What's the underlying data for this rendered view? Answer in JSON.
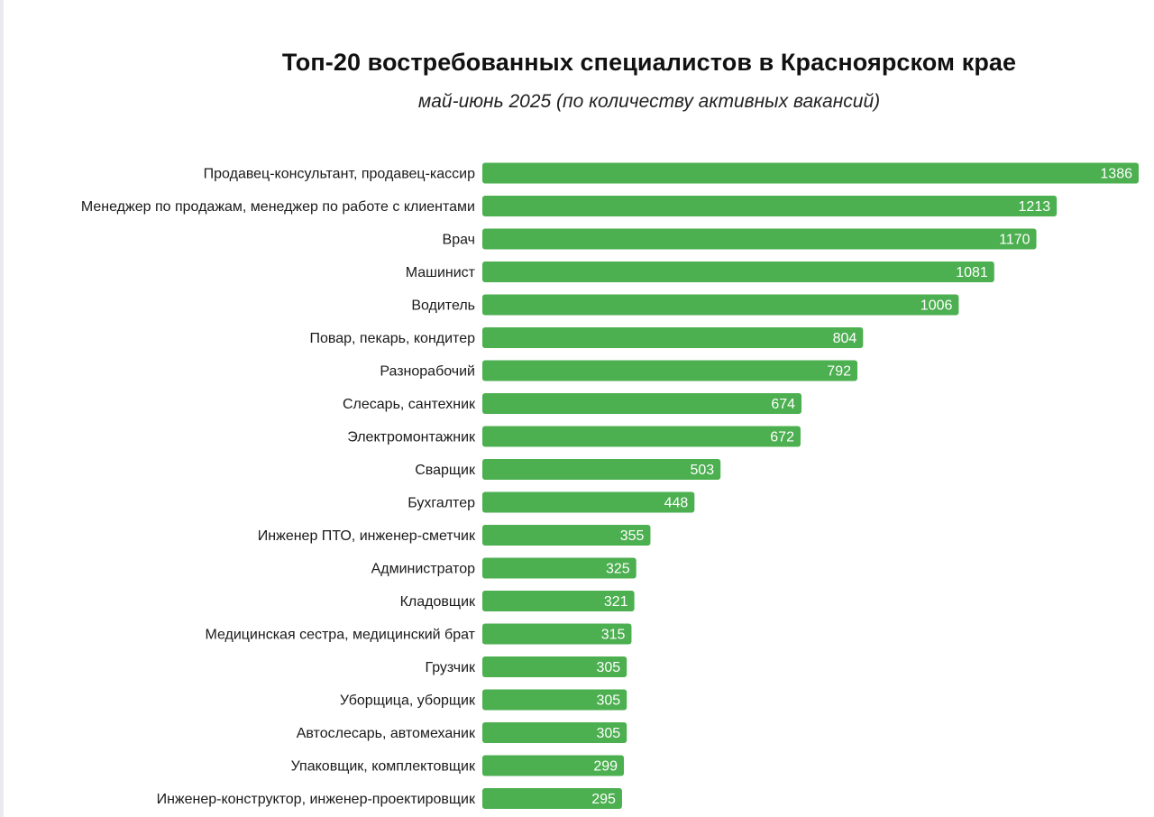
{
  "colors": {
    "bar": "#4caf50",
    "background": "#ffffff"
  },
  "chart_data": {
    "type": "bar",
    "orientation": "horizontal",
    "title": "Топ-20 востребованных специалистов в Красноярском крае",
    "subtitle": "май-июнь 2025 (по количеству активных вакансий)",
    "xlabel": "",
    "ylabel": "",
    "grid": false,
    "legend": "none",
    "xlim": [
      0,
      1386
    ],
    "categories": [
      "Продавец-консультант, продавец-кассир",
      "Менеджер по продажам, менеджер по работе с клиентами",
      "Врач",
      "Машинист",
      "Водитель",
      "Повар, пекарь, кондитер",
      "Разнорабочий",
      "Слесарь, сантехник",
      "Электромонтажник",
      "Сварщик",
      "Бухгалтер",
      "Инженер ПТО, инженер-сметчик",
      "Администратор",
      "Кладовщик",
      "Медицинская сестра, медицинский брат",
      "Грузчик",
      "Уборщица, уборщик",
      "Автослесарь, автомеханик",
      "Упаковщик, комплектовщик",
      "Инженер-конструктор, инженер-проектировщик"
    ],
    "values": [
      1386,
      1213,
      1170,
      1081,
      1006,
      804,
      792,
      674,
      672,
      503,
      448,
      355,
      325,
      321,
      315,
      305,
      305,
      305,
      299,
      295
    ],
    "data_labels": [
      "1386",
      "1213",
      "1170",
      "1081",
      "1006",
      "804",
      "792",
      "674",
      "672",
      "503",
      "448",
      "355",
      "325",
      "321",
      "315",
      "305",
      "305",
      "305",
      "299",
      "295"
    ]
  }
}
